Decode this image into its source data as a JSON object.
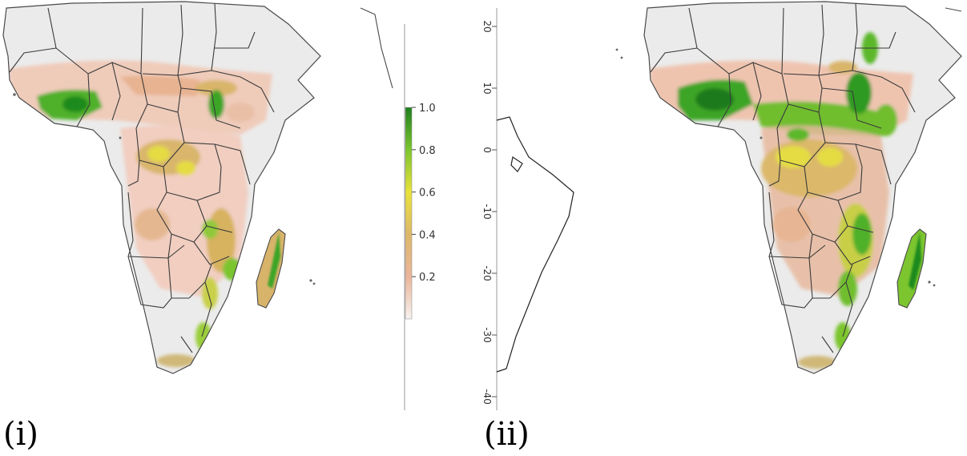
{
  "panels": {
    "left_label": "(i)",
    "right_label": "(ii)"
  },
  "legend": {
    "ticks": [
      "1.0",
      "0.8",
      "0.6",
      "0.4",
      "0.2"
    ],
    "values": [
      1.0,
      0.8,
      0.6,
      0.4,
      0.2
    ],
    "colors": {
      "low": "#f7f2f0",
      "low_mid": "#eab59a",
      "mid": "#ddb86a",
      "mid_high": "#e9e23a",
      "high": "#7cc52f",
      "max": "#1f7f1f"
    }
  },
  "latitude_axis": {
    "ticks": [
      "20",
      "10",
      "0",
      "-10",
      "-20",
      "-30",
      "-40"
    ],
    "values": [
      20,
      10,
      0,
      -10,
      -20,
      -30,
      -40
    ]
  },
  "colors": {
    "land": "#ebebeb",
    "border": "#3a3a3a",
    "water": "#ffffff"
  }
}
